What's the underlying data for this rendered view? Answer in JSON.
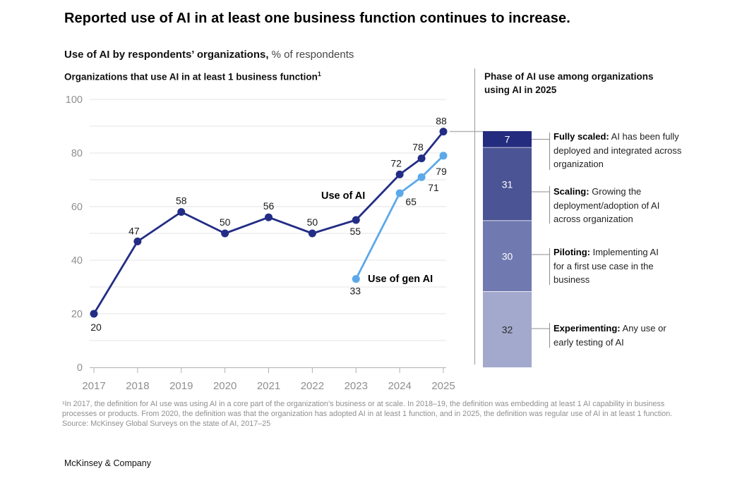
{
  "page": {
    "title": "Reported use of AI in at least one business function continues to increase.",
    "subtitle_bold": "Use of AI by respondents’ organizations,",
    "subtitle_regular": " % of respondents",
    "footnote": "¹In 2017, the definition for AI use was using AI in a core part of the organization’s business or at scale. In 2018–19, the definition was embedding at least 1 AI capability in business processes or products. From 2020, the definition was that the organization has adopted AI in at least 1 function, and in 2025, the definition was regular use of AI in at least 1 function.",
    "source": "Source: McKinsey Global Surveys on the state of AI, 2017–25",
    "logo": "McKinsey & Company"
  },
  "line_chart_header": {
    "title": "Organizations that use AI in at least 1 business function",
    "footnote_marker": "1"
  },
  "right_panel": {
    "title": "Phase of AI use among organizations using AI in 2025"
  },
  "chart_data": [
    {
      "type": "line",
      "title": "Organizations that use AI in at least 1 business function",
      "xlabel": "",
      "ylabel": "% of respondents",
      "x_ticks": [
        "2017",
        "2018",
        "2019",
        "2020",
        "2021",
        "2022",
        "2023",
        "2024",
        "2025"
      ],
      "y_ticks": [
        0,
        20,
        40,
        60,
        80,
        100
      ],
      "ylim": [
        0,
        100
      ],
      "grid": "horizontal every 10, light gray",
      "legend_position": "inline labels next to lines",
      "series": [
        {
          "name": "Use of AI",
          "color": "#232d85",
          "x": [
            2017,
            2018,
            2019,
            2020,
            2021,
            2022,
            2023,
            2024,
            2024.5,
            2025
          ],
          "values": [
            20,
            47,
            58,
            50,
            56,
            50,
            55,
            72,
            78,
            88
          ]
        },
        {
          "name": "Use of gen AI",
          "color": "#5ca9ea",
          "x": [
            2023,
            2024,
            2024.5,
            2025
          ],
          "values": [
            33,
            65,
            71,
            79
          ]
        }
      ]
    },
    {
      "type": "bar",
      "subtype": "stacked-vertical",
      "title": "Phase of AI use among organizations using AI in 2025",
      "total": 100,
      "segments": [
        {
          "value": 7,
          "color": "#232c7e",
          "value_text_color": "#ffffff",
          "label_bold": "Fully scaled:",
          "label_desc": " AI has been fully deployed and integrated across organization"
        },
        {
          "value": 31,
          "color": "#4b5494",
          "value_text_color": "#ffffff",
          "label_bold": "Scaling:",
          "label_desc": " Growing the deployment/adoption of AI across organization"
        },
        {
          "value": 30,
          "color": "#707ab0",
          "value_text_color": "#ffffff",
          "label_bold": "Piloting:",
          "label_desc": " Implementing AI for a first use case in the business"
        },
        {
          "value": 32,
          "color": "#a2a9cc",
          "value_text_color": "#2b2b2b",
          "label_bold": "Experimenting:",
          "label_desc": " Any use or early testing of AI"
        }
      ]
    }
  ],
  "colors": {
    "grid": "#e4e4e4",
    "axis": "#b0b0b0",
    "tick_text": "#8f8f8f",
    "divider": "#9a9a9a",
    "connector": "#b3b3b3",
    "bracket": "#8c8c8c",
    "data_label": "#1a1a1a"
  }
}
